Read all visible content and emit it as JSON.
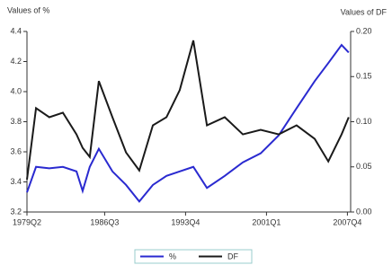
{
  "chart_data": {
    "type": "line",
    "y_label": "Values of %",
    "y2_label": "Values of DF",
    "x": [
      0,
      2.8,
      6.9,
      11.1,
      15.3,
      17.2,
      19.4,
      22.2,
      26.4,
      30.6,
      34.7,
      38.9,
      43.1,
      47.2,
      51.4,
      55.6,
      61.1,
      66.7,
      72.2,
      77.8,
      83.3,
      88.9,
      93.1,
      97.2,
      99.4
    ],
    "xlim": [
      0,
      100
    ],
    "xticks": [
      {
        "value": 0,
        "label": "1979Q2"
      },
      {
        "value": 24,
        "label": "1986Q3"
      },
      {
        "value": 49,
        "label": "1993Q4"
      },
      {
        "value": 74,
        "label": "2001Q1"
      },
      {
        "value": 99,
        "label": "2007Q4"
      }
    ],
    "ylim": [
      3.2,
      4.4
    ],
    "yticks": [
      {
        "value": 3.2,
        "label": "3.2"
      },
      {
        "value": 3.4,
        "label": "3.4"
      },
      {
        "value": 3.6,
        "label": "3.6"
      },
      {
        "value": 3.8,
        "label": "3.8"
      },
      {
        "value": 4.0,
        "label": "4.0"
      },
      {
        "value": 4.2,
        "label": "4.2"
      },
      {
        "value": 4.4,
        "label": "4.4"
      }
    ],
    "y2lim": [
      0,
      0.2
    ],
    "y2ticks": [
      {
        "value": 0,
        "label": "0.00"
      },
      {
        "value": 0.05,
        "label": "0.05"
      },
      {
        "value": 0.1,
        "label": "0.10"
      },
      {
        "value": 0.15,
        "label": "0.15"
      },
      {
        "value": 0.2,
        "label": "0.20"
      }
    ],
    "series": [
      {
        "name": "%",
        "color": "#2a2ad0",
        "values": [
          3.33,
          3.5,
          3.49,
          3.5,
          3.47,
          3.34,
          3.5,
          3.62,
          3.47,
          3.38,
          3.27,
          3.38,
          3.44,
          3.47,
          3.5,
          3.36,
          3.44,
          3.53,
          3.59,
          3.71,
          3.89,
          4.07,
          4.19,
          4.31,
          4.26
        ]
      },
      {
        "name": "DF",
        "color": "#1a1a1a",
        "axis": "y2",
        "values": [
          0.036,
          0.115,
          0.105,
          0.11,
          0.086,
          0.071,
          0.061,
          0.145,
          0.105,
          0.066,
          0.046,
          0.096,
          0.105,
          0.135,
          0.19,
          0.096,
          0.105,
          0.086,
          0.091,
          0.086,
          0.096,
          0.081,
          0.056,
          0.086,
          0.105
        ]
      }
    ]
  }
}
